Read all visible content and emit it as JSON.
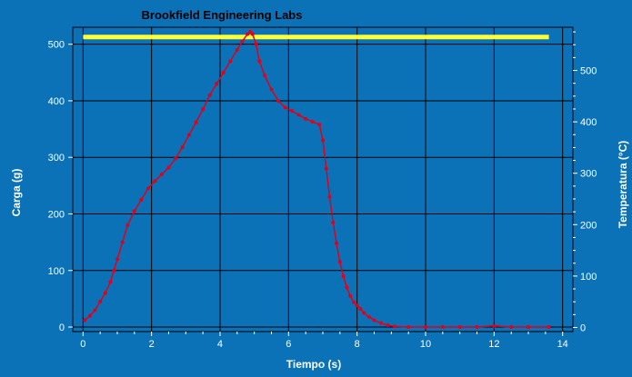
{
  "chart_data": {
    "type": "line",
    "title": "Brookfield Engineering Labs",
    "xlabel": "Tiempo (s)",
    "ylabel": "Carga (g)",
    "y2label": "Temperatura (°C)",
    "xlim": [
      -0.3,
      14.3
    ],
    "ylim": [
      -8,
      530
    ],
    "y2lim": [
      -8,
      584
    ],
    "xticks": [
      0,
      2,
      4,
      6,
      8,
      10,
      12,
      14
    ],
    "yticks": [
      0,
      100,
      200,
      300,
      400,
      500
    ],
    "y2ticks": [
      0,
      100,
      200,
      300,
      400,
      500
    ],
    "grid": true,
    "colors": {
      "background": "#0b72b8",
      "plot_background": "#0b72b8",
      "grid": "#000000",
      "load_series": "#e0001b",
      "temperature_series": "#ffff33"
    },
    "series": [
      {
        "axis": "left",
        "x": [
          0.05,
          0.2,
          0.35,
          0.5,
          0.65,
          0.8,
          0.9,
          1.0,
          1.15,
          1.3,
          1.5,
          1.7,
          1.9,
          2.1,
          2.3,
          2.5,
          2.7,
          2.9,
          3.1,
          3.3,
          3.5,
          3.7,
          3.9,
          4.1,
          4.3,
          4.5,
          4.65,
          4.8,
          4.88,
          4.95,
          5.05,
          5.15,
          5.3,
          5.5,
          5.7,
          5.9,
          6.1,
          6.3,
          6.5,
          6.7,
          6.9,
          7.0,
          7.1,
          7.2,
          7.3,
          7.4,
          7.5,
          7.6,
          7.7,
          7.8,
          7.9,
          8.0,
          8.1,
          8.2,
          8.35,
          8.5,
          8.7,
          8.9,
          9.1,
          9.5,
          10.0,
          10.5,
          11.0,
          11.5,
          12.0,
          12.5,
          13.0,
          13.6
        ],
        "values": [
          12,
          20,
          30,
          45,
          60,
          80,
          100,
          120,
          150,
          180,
          205,
          225,
          245,
          258,
          270,
          282,
          298,
          318,
          340,
          362,
          385,
          410,
          430,
          450,
          470,
          490,
          505,
          518,
          522,
          518,
          500,
          470,
          445,
          420,
          400,
          388,
          382,
          375,
          368,
          363,
          358,
          330,
          280,
          230,
          185,
          148,
          115,
          90,
          70,
          55,
          44,
          38,
          32,
          25,
          18,
          12,
          7,
          3,
          1,
          0,
          0,
          0,
          0,
          0,
          2,
          0,
          0,
          0
        ]
      },
      {
        "axis": "right",
        "x": [
          0,
          13.6
        ],
        "values": [
          565,
          565
        ]
      }
    ]
  }
}
